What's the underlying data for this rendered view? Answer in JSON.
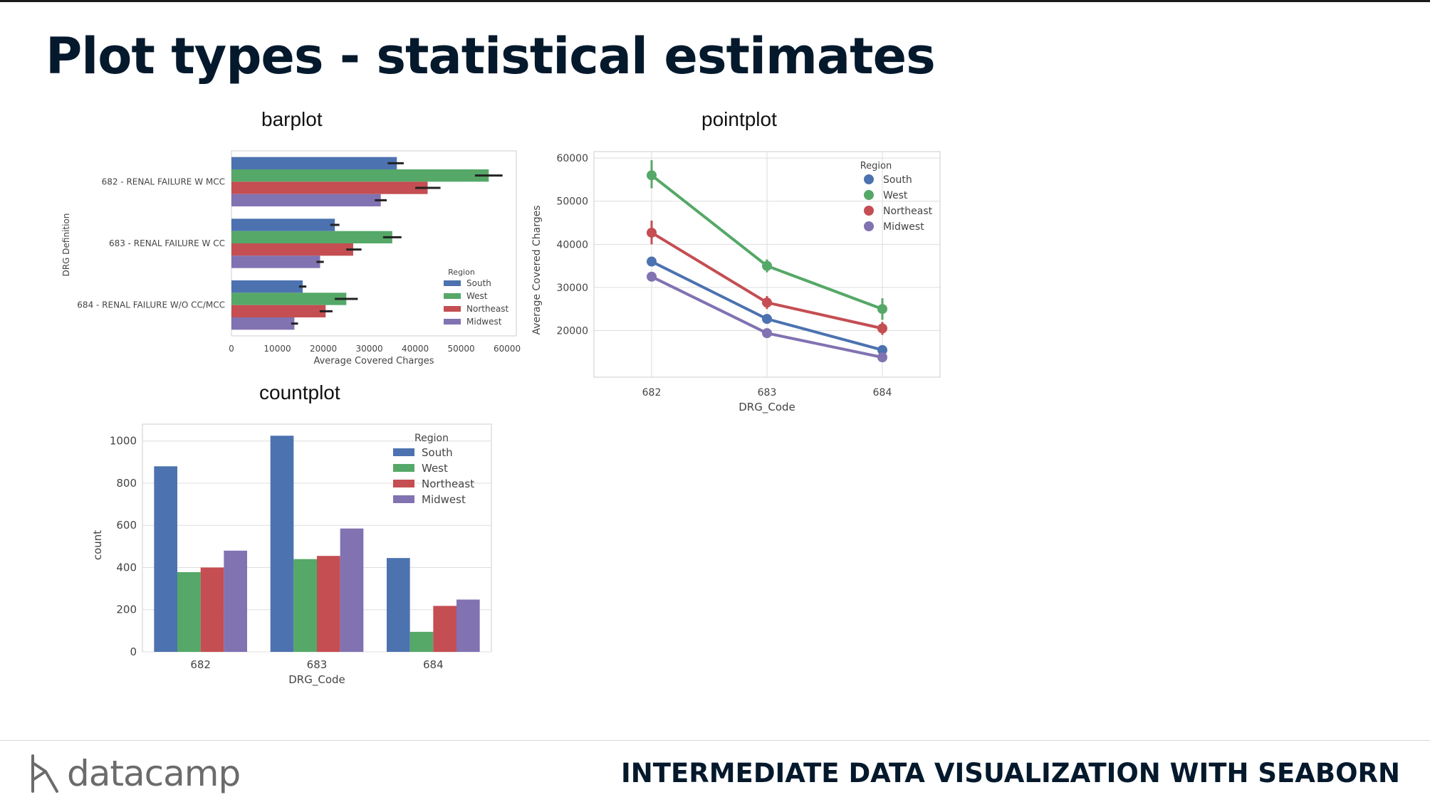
{
  "title": "Plot types - statistical estimates",
  "footer": {
    "brand": "datacamp",
    "course": "INTERMEDIATE DATA VISUALIZATION WITH SEABORN"
  },
  "colors": {
    "South": "#4c72b0",
    "West": "#55a868",
    "Northeast": "#c44e52",
    "Midwest": "#8172b2"
  },
  "chart_data": [
    {
      "id": "barplot",
      "type": "bar",
      "orientation": "horizontal",
      "title": "barplot",
      "categories": [
        "682 - RENAL FAILURE W MCC",
        "683 - RENAL FAILURE W CC",
        "684 - RENAL FAILURE W/O CC/MCC"
      ],
      "series": [
        {
          "name": "South",
          "values": [
            36000,
            22500,
            15500
          ],
          "ci": [
            [
              34000,
              37500
            ],
            [
              21500,
              23500
            ],
            [
              14700,
              16300
            ]
          ]
        },
        {
          "name": "West",
          "values": [
            56000,
            35000,
            25000
          ],
          "ci": [
            [
              53000,
              59000
            ],
            [
              33000,
              37000
            ],
            [
              22500,
              27500
            ]
          ]
        },
        {
          "name": "Northeast",
          "values": [
            42700,
            26500,
            20500
          ],
          "ci": [
            [
              40000,
              45500
            ],
            [
              25000,
              28300
            ],
            [
              19200,
              22000
            ]
          ]
        },
        {
          "name": "Midwest",
          "values": [
            32500,
            19300,
            13700
          ],
          "ci": [
            [
              31200,
              33800
            ],
            [
              18500,
              20100
            ],
            [
              13000,
              14500
            ]
          ]
        }
      ],
      "xlabel": "Average Covered Charges",
      "ylabel": "DRG Definition",
      "xlim": [
        0,
        62000
      ],
      "xticks": [
        "0",
        "10000",
        "20000",
        "30000",
        "40000",
        "50000",
        "60000"
      ],
      "xtick_values": [
        0,
        10000,
        20000,
        30000,
        40000,
        50000,
        60000
      ],
      "legend": {
        "title": "Region",
        "placement": "lower-right"
      }
    },
    {
      "id": "pointplot",
      "type": "line",
      "title": "pointplot",
      "categories": [
        "682",
        "683",
        "684"
      ],
      "series": [
        {
          "name": "South",
          "values": [
            36000,
            22700,
            15500
          ],
          "ci": [
            [
              35000,
              37000
            ],
            [
              22000,
              23400
            ],
            [
              14800,
              16200
            ]
          ]
        },
        {
          "name": "West",
          "values": [
            56000,
            35000,
            25000
          ],
          "ci": [
            [
              53000,
              59500
            ],
            [
              33500,
              36500
            ],
            [
              22500,
              27500
            ]
          ]
        },
        {
          "name": "Northeast",
          "values": [
            42700,
            26500,
            20500
          ],
          "ci": [
            [
              40000,
              45500
            ],
            [
              25000,
              28000
            ],
            [
              19000,
              22000
            ]
          ]
        },
        {
          "name": "Midwest",
          "values": [
            32500,
            19400,
            13800
          ],
          "ci": [
            [
              31500,
              33500
            ],
            [
              18800,
              20000
            ],
            [
              13200,
              14400
            ]
          ]
        }
      ],
      "xlabel": "DRG_Code",
      "ylabel": "Average Covered Charges",
      "ylim": [
        9200,
        61500
      ],
      "yticks": [
        "20000",
        "30000",
        "40000",
        "50000",
        "60000"
      ],
      "ytick_values": [
        20000,
        30000,
        40000,
        50000,
        60000
      ],
      "grid": true,
      "legend": {
        "title": "Region",
        "placement": "top-right"
      }
    },
    {
      "id": "countplot",
      "type": "bar",
      "orientation": "vertical",
      "title": "countplot",
      "categories": [
        "682",
        "683",
        "684"
      ],
      "series": [
        {
          "name": "South",
          "values": [
            880,
            1025,
            445
          ]
        },
        {
          "name": "West",
          "values": [
            378,
            440,
            95
          ]
        },
        {
          "name": "Northeast",
          "values": [
            400,
            455,
            218
          ]
        },
        {
          "name": "Midwest",
          "values": [
            480,
            585,
            248
          ]
        }
      ],
      "xlabel": "DRG_Code",
      "ylabel": "count",
      "ylim": [
        0,
        1080
      ],
      "yticks": [
        "0",
        "200",
        "400",
        "600",
        "800",
        "1000"
      ],
      "ytick_values": [
        0,
        200,
        400,
        600,
        800,
        1000
      ],
      "grid": true,
      "legend": {
        "title": "Region",
        "placement": "top-right"
      }
    }
  ]
}
